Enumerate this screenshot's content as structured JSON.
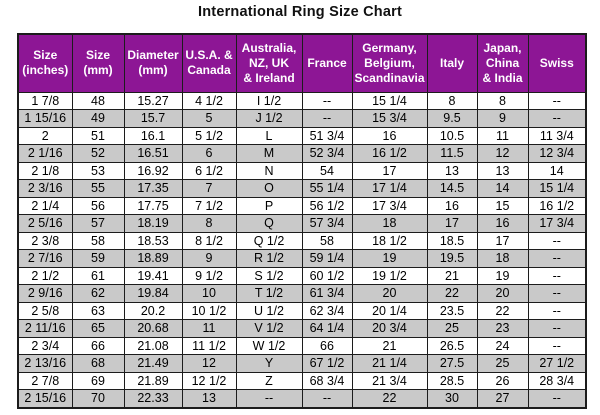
{
  "title": "International Ring Size Chart",
  "colors": {
    "header_bg": "#8d1695",
    "header_text": "#ffffff",
    "row_bg": "#ffffff",
    "row_alt_bg": "#c9c9c9",
    "grid_border": "#1c1c1c",
    "title_text": "#111111"
  },
  "chart_data": {
    "type": "table",
    "title": "International Ring Size Chart",
    "columns": [
      "Size\n(inches)",
      "Size\n(mm)",
      "Diameter\n(mm)",
      "U.S.A. &\nCanada",
      "Australia,\nNZ, UK\n& Ireland",
      "France",
      "Germany,\nBelgium,\nScandinavia",
      "Italy",
      "Japan,\nChina\n& India",
      "Swiss"
    ],
    "rows": [
      [
        "1 7/8",
        "48",
        "15.27",
        "4 1/2",
        "I 1/2",
        "--",
        "15 1/4",
        "8",
        "8",
        "--"
      ],
      [
        "1 15/16",
        "49",
        "15.7",
        "5",
        "J 1/2",
        "--",
        "15 3/4",
        "9.5",
        "9",
        "--"
      ],
      [
        "2",
        "51",
        "16.1",
        "5 1/2",
        "L",
        "51 3/4",
        "16",
        "10.5",
        "11",
        "11 3/4"
      ],
      [
        "2 1/16",
        "52",
        "16.51",
        "6",
        "M",
        "52 3/4",
        "16 1/2",
        "11.5",
        "12",
        "12 3/4"
      ],
      [
        "2 1/8",
        "53",
        "16.92",
        "6 1/2",
        "N",
        "54",
        "17",
        "13",
        "13",
        "14"
      ],
      [
        "2 3/16",
        "55",
        "17.35",
        "7",
        "O",
        "55 1/4",
        "17 1/4",
        "14.5",
        "14",
        "15 1/4"
      ],
      [
        "2 1/4",
        "56",
        "17.75",
        "7 1/2",
        "P",
        "56 1/2",
        "17 3/4",
        "16",
        "15",
        "16 1/2"
      ],
      [
        "2 5/16",
        "57",
        "18.19",
        "8",
        "Q",
        "57 3/4",
        "18",
        "17",
        "16",
        "17 3/4"
      ],
      [
        "2 3/8",
        "58",
        "18.53",
        "8 1/2",
        "Q 1/2",
        "58",
        "18 1/2",
        "18.5",
        "17",
        "--"
      ],
      [
        "2 7/16",
        "59",
        "18.89",
        "9",
        "R 1/2",
        "59 1/4",
        "19",
        "19.5",
        "18",
        "--"
      ],
      [
        "2 1/2",
        "61",
        "19.41",
        "9 1/2",
        "S 1/2",
        "60 1/2",
        "19 1/2",
        "21",
        "19",
        "--"
      ],
      [
        "2 9/16",
        "62",
        "19.84",
        "10",
        "T 1/2",
        "61 3/4",
        "20",
        "22",
        "20",
        "--"
      ],
      [
        "2 5/8",
        "63",
        "20.2",
        "10 1/2",
        "U 1/2",
        "62 3/4",
        "20 1/4",
        "23.5",
        "22",
        "--"
      ],
      [
        "2 11/16",
        "65",
        "20.68",
        "11",
        "V 1/2",
        "64 1/4",
        "20 3/4",
        "25",
        "23",
        "--"
      ],
      [
        "2 3/4",
        "66",
        "21.08",
        "11 1/2",
        "W 1/2",
        "66",
        "21",
        "26.5",
        "24",
        "--"
      ],
      [
        "2 13/16",
        "68",
        "21.49",
        "12",
        "Y",
        "67 1/2",
        "21 1/4",
        "27.5",
        "25",
        "27 1/2"
      ],
      [
        "2 7/8",
        "69",
        "21.89",
        "12 1/2",
        "Z",
        "68 3/4",
        "21 3/4",
        "28.5",
        "26",
        "28 3/4"
      ],
      [
        "2 15/16",
        "70",
        "22.33",
        "13",
        "--",
        "--",
        "22",
        "30",
        "27",
        "--"
      ]
    ]
  }
}
